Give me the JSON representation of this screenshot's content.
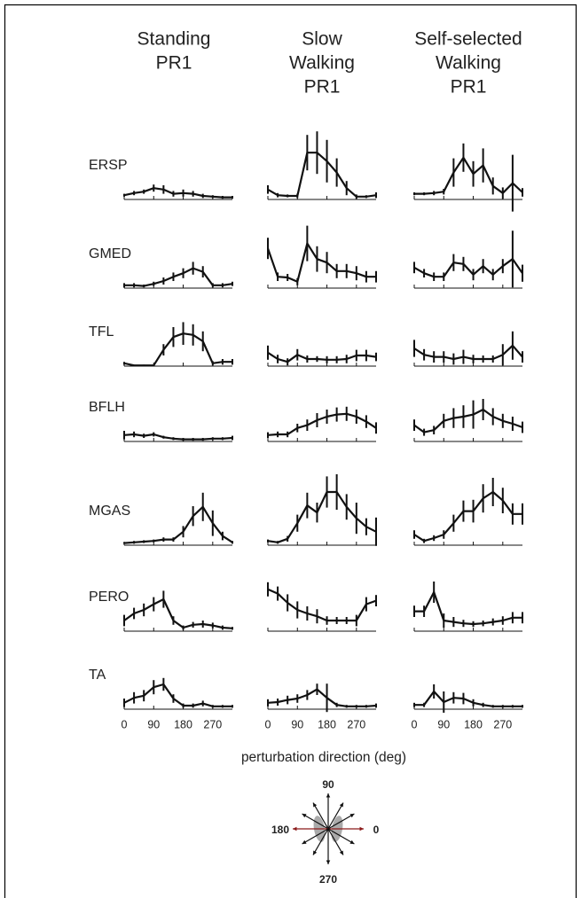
{
  "chart_data": [
    {
      "type": "line",
      "title": [
        "Standing",
        "PR1"
      ],
      "ylabel": "ERSP",
      "x": [
        0,
        30,
        60,
        90,
        120,
        150,
        180,
        210,
        240,
        270,
        300,
        330
      ],
      "values": [
        0.06,
        0.09,
        0.11,
        0.16,
        0.14,
        0.08,
        0.09,
        0.08,
        0.05,
        0.04,
        0.03,
        0.03
      ],
      "errors": [
        0.02,
        0.03,
        0.03,
        0.05,
        0.06,
        0.04,
        0.05,
        0.04,
        0.03,
        0.02,
        0.02,
        0.02
      ],
      "xlim": [
        0,
        330
      ],
      "ylim": [
        0,
        1
      ]
    },
    {
      "type": "line",
      "ylabel": "GMED",
      "x": [
        0,
        30,
        60,
        90,
        120,
        150,
        180,
        210,
        240,
        270,
        300,
        330
      ],
      "values": [
        0.04,
        0.04,
        0.03,
        0.06,
        0.1,
        0.16,
        0.21,
        0.28,
        0.23,
        0.04,
        0.04,
        0.06
      ],
      "errors": [
        0.03,
        0.03,
        0.02,
        0.03,
        0.05,
        0.06,
        0.07,
        0.09,
        0.08,
        0.03,
        0.03,
        0.03
      ],
      "xlim": [
        0,
        330
      ],
      "ylim": [
        0,
        1
      ]
    },
    {
      "type": "line",
      "ylabel": "TFL",
      "x": [
        0,
        30,
        60,
        90,
        120,
        150,
        180,
        210,
        240,
        270,
        300,
        330
      ],
      "values": [
        0.04,
        0.01,
        0.01,
        0.01,
        0.23,
        0.41,
        0.46,
        0.44,
        0.35,
        0.04,
        0.06,
        0.06
      ],
      "errors": [
        0.02,
        0.01,
        0.01,
        0.01,
        0.08,
        0.14,
        0.16,
        0.15,
        0.14,
        0.03,
        0.04,
        0.04
      ],
      "xlim": [
        0,
        330
      ],
      "ylim": [
        0,
        1
      ]
    },
    {
      "type": "line",
      "ylabel": "BFLH",
      "x": [
        0,
        30,
        60,
        90,
        120,
        150,
        180,
        210,
        240,
        270,
        300,
        330
      ],
      "values": [
        0.09,
        0.1,
        0.08,
        0.1,
        0.06,
        0.04,
        0.03,
        0.03,
        0.03,
        0.04,
        0.04,
        0.05
      ],
      "errors": [
        0.06,
        0.04,
        0.03,
        0.03,
        0.02,
        0.02,
        0.02,
        0.02,
        0.02,
        0.02,
        0.02,
        0.03
      ],
      "xlim": [
        0,
        330
      ],
      "ylim": [
        0,
        1
      ]
    },
    {
      "type": "line",
      "ylabel": "MGAS",
      "x": [
        0,
        30,
        60,
        90,
        120,
        150,
        180,
        210,
        240,
        270,
        300,
        330
      ],
      "values": [
        0.03,
        0.04,
        0.05,
        0.06,
        0.08,
        0.08,
        0.19,
        0.41,
        0.54,
        0.31,
        0.13,
        0.04
      ],
      "errors": [
        0.01,
        0.02,
        0.02,
        0.02,
        0.03,
        0.03,
        0.08,
        0.14,
        0.2,
        0.18,
        0.06,
        0.02
      ],
      "xlim": [
        0,
        330
      ],
      "ylim": [
        0,
        1
      ]
    },
    {
      "type": "line",
      "ylabel": "PERO",
      "x": [
        0,
        30,
        60,
        90,
        120,
        150,
        180,
        210,
        240,
        270,
        300,
        330
      ],
      "values": [
        0.15,
        0.25,
        0.3,
        0.38,
        0.45,
        0.15,
        0.05,
        0.09,
        0.1,
        0.08,
        0.05,
        0.04
      ],
      "errors": [
        0.08,
        0.08,
        0.09,
        0.1,
        0.12,
        0.06,
        0.03,
        0.04,
        0.05,
        0.04,
        0.03,
        0.02
      ],
      "xlim": [
        0,
        330
      ],
      "ylim": [
        0,
        1
      ]
    },
    {
      "type": "line",
      "ylabel": "TA",
      "x": [
        0,
        30,
        60,
        90,
        120,
        150,
        180,
        210,
        240,
        270,
        300,
        330
      ],
      "values": [
        0.09,
        0.16,
        0.19,
        0.31,
        0.35,
        0.15,
        0.05,
        0.05,
        0.08,
        0.04,
        0.04,
        0.04
      ],
      "errors": [
        0.06,
        0.08,
        0.08,
        0.1,
        0.09,
        0.06,
        0.03,
        0.03,
        0.04,
        0.02,
        0.02,
        0.02
      ],
      "xlim": [
        0,
        330
      ],
      "ylim": [
        0,
        1
      ],
      "xticks": [
        0,
        90,
        180,
        270
      ]
    },
    {
      "type": "line",
      "title": [
        "Slow",
        "Walking",
        "PR1"
      ],
      "x": [
        0,
        30,
        60,
        90,
        120,
        150,
        180,
        210,
        240,
        270,
        300,
        330
      ],
      "values": [
        0.14,
        0.06,
        0.05,
        0.05,
        0.66,
        0.66,
        0.54,
        0.38,
        0.16,
        0.04,
        0.04,
        0.06
      ],
      "errors": [
        0.06,
        0.03,
        0.02,
        0.03,
        0.25,
        0.3,
        0.3,
        0.2,
        0.1,
        0.03,
        0.02,
        0.04
      ],
      "xlim": [
        0,
        330
      ],
      "ylim": [
        0,
        1
      ]
    },
    {
      "type": "line",
      "x": [
        0,
        30,
        60,
        90,
        120,
        150,
        180,
        210,
        240,
        270,
        300,
        330
      ],
      "values": [
        0.56,
        0.16,
        0.15,
        0.09,
        0.63,
        0.41,
        0.36,
        0.24,
        0.24,
        0.21,
        0.16,
        0.16
      ],
      "errors": [
        0.15,
        0.06,
        0.05,
        0.05,
        0.25,
        0.18,
        0.15,
        0.1,
        0.1,
        0.1,
        0.08,
        0.08
      ],
      "xlim": [
        0,
        330
      ],
      "ylim": [
        0,
        1
      ]
    },
    {
      "type": "line",
      "x": [
        0,
        30,
        60,
        90,
        120,
        150,
        180,
        210,
        240,
        270,
        300,
        330
      ],
      "values": [
        0.19,
        0.1,
        0.06,
        0.16,
        0.1,
        0.1,
        0.09,
        0.09,
        0.1,
        0.15,
        0.15,
        0.13
      ],
      "errors": [
        0.1,
        0.06,
        0.05,
        0.08,
        0.05,
        0.04,
        0.05,
        0.05,
        0.06,
        0.08,
        0.08,
        0.06
      ],
      "xlim": [
        0,
        330
      ],
      "ylim": [
        0,
        1
      ]
    },
    {
      "type": "line",
      "x": [
        0,
        30,
        60,
        90,
        120,
        150,
        180,
        210,
        240,
        270,
        300,
        330
      ],
      "values": [
        0.09,
        0.1,
        0.1,
        0.19,
        0.23,
        0.3,
        0.35,
        0.38,
        0.39,
        0.35,
        0.28,
        0.19
      ],
      "errors": [
        0.04,
        0.04,
        0.04,
        0.06,
        0.08,
        0.1,
        0.1,
        0.1,
        0.1,
        0.1,
        0.09,
        0.08
      ],
      "xlim": [
        0,
        330
      ],
      "ylim": [
        0,
        1
      ]
    },
    {
      "type": "line",
      "x": [
        0,
        30,
        60,
        90,
        120,
        150,
        180,
        210,
        240,
        270,
        300,
        330
      ],
      "values": [
        0.06,
        0.04,
        0.09,
        0.31,
        0.56,
        0.46,
        0.75,
        0.75,
        0.54,
        0.38,
        0.26,
        0.19
      ],
      "errors": [
        0.02,
        0.02,
        0.04,
        0.12,
        0.18,
        0.14,
        0.22,
        0.25,
        0.18,
        0.22,
        0.12,
        0.2
      ],
      "xlim": [
        0,
        330
      ],
      "ylim": [
        0,
        1
      ]
    },
    {
      "type": "line",
      "x": [
        0,
        30,
        60,
        90,
        120,
        150,
        180,
        210,
        240,
        270,
        300,
        330
      ],
      "values": [
        0.59,
        0.53,
        0.4,
        0.3,
        0.25,
        0.21,
        0.15,
        0.15,
        0.15,
        0.15,
        0.38,
        0.43
      ],
      "errors": [
        0.1,
        0.1,
        0.12,
        0.12,
        0.1,
        0.1,
        0.06,
        0.05,
        0.05,
        0.08,
        0.1,
        0.08
      ],
      "xlim": [
        0,
        330
      ],
      "ylim": [
        0,
        1
      ]
    },
    {
      "type": "line",
      "x": [
        0,
        30,
        60,
        90,
        120,
        150,
        180,
        210,
        240,
        270,
        300,
        330
      ],
      "values": [
        0.09,
        0.1,
        0.13,
        0.15,
        0.2,
        0.28,
        0.16,
        0.06,
        0.04,
        0.04,
        0.04,
        0.05
      ],
      "errors": [
        0.05,
        0.05,
        0.06,
        0.06,
        0.07,
        0.08,
        0.2,
        0.03,
        0.02,
        0.02,
        0.02,
        0.03
      ],
      "xlim": [
        0,
        330
      ],
      "ylim": [
        0,
        1
      ],
      "xticks": [
        0,
        90,
        180,
        270
      ]
    },
    {
      "type": "line",
      "title": [
        "Self-selected",
        "Walking",
        "PR1"
      ],
      "x": [
        0,
        30,
        60,
        90,
        120,
        150,
        180,
        210,
        240,
        270,
        300,
        330
      ],
      "values": [
        0.08,
        0.08,
        0.09,
        0.11,
        0.38,
        0.59,
        0.36,
        0.48,
        0.19,
        0.09,
        0.23,
        0.1
      ],
      "errors": [
        0.02,
        0.02,
        0.03,
        0.04,
        0.2,
        0.2,
        0.18,
        0.24,
        0.12,
        0.08,
        0.4,
        0.06
      ],
      "xlim": [
        0,
        330
      ],
      "ylim": [
        0,
        1
      ]
    },
    {
      "type": "line",
      "x": [
        0,
        30,
        60,
        90,
        120,
        150,
        180,
        210,
        240,
        270,
        300,
        330
      ],
      "values": [
        0.29,
        0.21,
        0.16,
        0.16,
        0.36,
        0.34,
        0.19,
        0.31,
        0.19,
        0.31,
        0.41,
        0.21
      ],
      "errors": [
        0.08,
        0.06,
        0.06,
        0.06,
        0.12,
        0.1,
        0.08,
        0.1,
        0.08,
        0.1,
        0.4,
        0.12
      ],
      "xlim": [
        0,
        330
      ],
      "ylim": [
        0,
        1
      ]
    },
    {
      "type": "line",
      "x": [
        0,
        30,
        60,
        90,
        120,
        150,
        180,
        210,
        240,
        270,
        300,
        330
      ],
      "values": [
        0.25,
        0.16,
        0.13,
        0.13,
        0.1,
        0.13,
        0.1,
        0.1,
        0.1,
        0.16,
        0.29,
        0.13
      ],
      "errors": [
        0.12,
        0.08,
        0.08,
        0.08,
        0.08,
        0.1,
        0.06,
        0.05,
        0.05,
        0.15,
        0.2,
        0.08
      ],
      "xlim": [
        0,
        330
      ],
      "ylim": [
        0,
        1
      ]
    },
    {
      "type": "line",
      "x": [
        0,
        30,
        60,
        90,
        120,
        150,
        180,
        210,
        240,
        270,
        300,
        330
      ],
      "values": [
        0.23,
        0.13,
        0.16,
        0.29,
        0.33,
        0.35,
        0.38,
        0.45,
        0.35,
        0.29,
        0.25,
        0.2
      ],
      "errors": [
        0.08,
        0.05,
        0.06,
        0.1,
        0.14,
        0.16,
        0.2,
        0.15,
        0.12,
        0.1,
        0.1,
        0.08
      ],
      "xlim": [
        0,
        330
      ],
      "ylim": [
        0,
        1
      ]
    },
    {
      "type": "line",
      "x": [
        0,
        30,
        60,
        90,
        120,
        150,
        180,
        210,
        240,
        270,
        300,
        330
      ],
      "values": [
        0.15,
        0.06,
        0.1,
        0.15,
        0.31,
        0.48,
        0.48,
        0.66,
        0.75,
        0.63,
        0.44,
        0.44
      ],
      "errors": [
        0.06,
        0.03,
        0.04,
        0.06,
        0.12,
        0.15,
        0.16,
        0.2,
        0.2,
        0.18,
        0.15,
        0.15
      ],
      "xlim": [
        0,
        330
      ],
      "ylim": [
        0,
        1
      ]
    },
    {
      "type": "line",
      "x": [
        0,
        30,
        60,
        90,
        120,
        150,
        180,
        210,
        240,
        270,
        300,
        330
      ],
      "values": [
        0.28,
        0.28,
        0.55,
        0.15,
        0.13,
        0.11,
        0.1,
        0.11,
        0.13,
        0.15,
        0.19,
        0.19
      ],
      "errors": [
        0.08,
        0.08,
        0.15,
        0.1,
        0.07,
        0.05,
        0.04,
        0.04,
        0.05,
        0.06,
        0.08,
        0.08
      ],
      "xlim": [
        0,
        330
      ],
      "ylim": [
        0,
        1
      ]
    },
    {
      "type": "line",
      "x": [
        0,
        30,
        60,
        90,
        120,
        150,
        180,
        210,
        240,
        270,
        300,
        330
      ],
      "values": [
        0.06,
        0.06,
        0.25,
        0.1,
        0.16,
        0.15,
        0.09,
        0.06,
        0.04,
        0.04,
        0.04,
        0.04
      ],
      "errors": [
        0.03,
        0.03,
        0.1,
        0.15,
        0.08,
        0.08,
        0.05,
        0.03,
        0.02,
        0.02,
        0.02,
        0.02
      ],
      "xlim": [
        0,
        330
      ],
      "ylim": [
        0,
        1
      ],
      "xticks": [
        0,
        90,
        180,
        270
      ]
    }
  ],
  "xlabel": "perturbation direction (deg)",
  "compass": {
    "up": "90",
    "left": "180",
    "right": "0",
    "down": "270"
  }
}
